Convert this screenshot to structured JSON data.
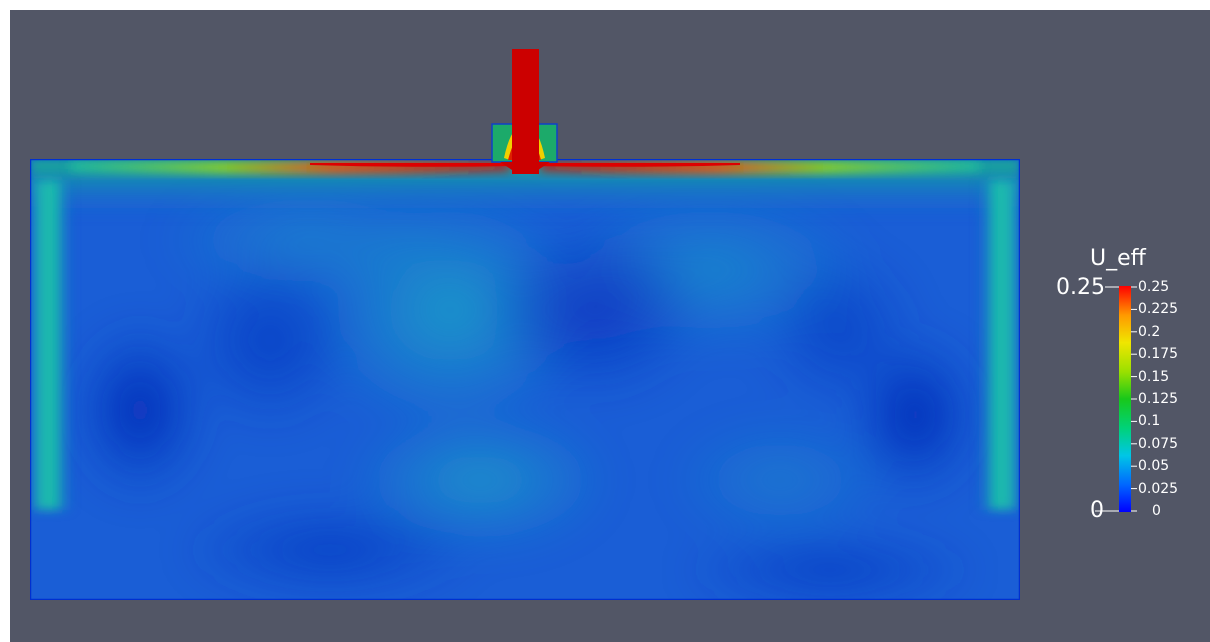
{
  "legend": {
    "title": "U_eff",
    "range_min_label": "0",
    "range_max_label": "0.25",
    "ticks": [
      "0.25",
      "0.225",
      "0.2",
      "0.175",
      "0.15",
      "0.125",
      "0.1",
      "0.075",
      "0.05",
      "0.025",
      "0"
    ],
    "colormap": [
      "#0000ff",
      "#0066ff",
      "#00c6e6",
      "#00d27a",
      "#18c81a",
      "#9ae000",
      "#f0e600",
      "#ff9a00",
      "#ff0000"
    ]
  },
  "colors": {
    "background": "#525666",
    "high": "#cc0000",
    "mid": "#26b36a",
    "low": "#0a3fc4"
  }
}
